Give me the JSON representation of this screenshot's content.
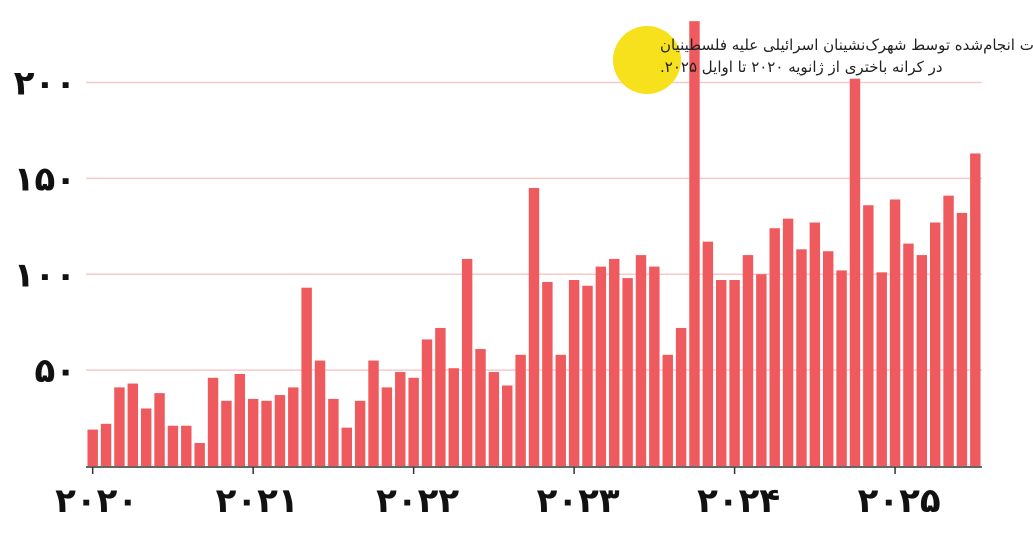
{
  "chart_data": {
    "type": "bar",
    "title_lines": [
      "تعداد حملات انجام‌شده توسط شهرک‌نشینان اسرائیلی علیه فلسطینیان",
      "در کرانه باختری از ژانویه ۲۰۲۰ تا اوایل ۲۰۲۵."
    ],
    "xlabel": "",
    "ylabel": "",
    "ylim": [
      0,
      230
    ],
    "yticks": [
      {
        "value": 50,
        "label": "۵۰"
      },
      {
        "value": 100,
        "label": "۱۰۰"
      },
      {
        "value": 150,
        "label": "۱۵۰"
      },
      {
        "value": 200,
        "label": "۲۰۰"
      }
    ],
    "year_ticks": [
      {
        "index": 0,
        "label": "۲۰۲۰"
      },
      {
        "index": 12,
        "label": "۲۰۲۱"
      },
      {
        "index": 24,
        "label": "۲۰۲۲"
      },
      {
        "index": 36,
        "label": "۲۰۲۳"
      },
      {
        "index": 48,
        "label": "۲۰۲۴"
      },
      {
        "index": 60,
        "label": "۲۰۲۵"
      }
    ],
    "grid": true,
    "bar_color": "#ee5a5e",
    "grid_color": "#f6c9c9",
    "highlight_color": "#f7e11c",
    "values": [
      19,
      22,
      41,
      43,
      30,
      38,
      21,
      21,
      12,
      46,
      34,
      48,
      35,
      34,
      37,
      41,
      93,
      55,
      35,
      20,
      34,
      55,
      41,
      49,
      46,
      66,
      72,
      51,
      108,
      61,
      49,
      42,
      58,
      145,
      96,
      58,
      97,
      94,
      104,
      108,
      98,
      110,
      104,
      58,
      72,
      232,
      117,
      97,
      97,
      110,
      100,
      124,
      129,
      113,
      127,
      112,
      102,
      202,
      136,
      101,
      139,
      116,
      110,
      127,
      141,
      132,
      163
    ]
  }
}
